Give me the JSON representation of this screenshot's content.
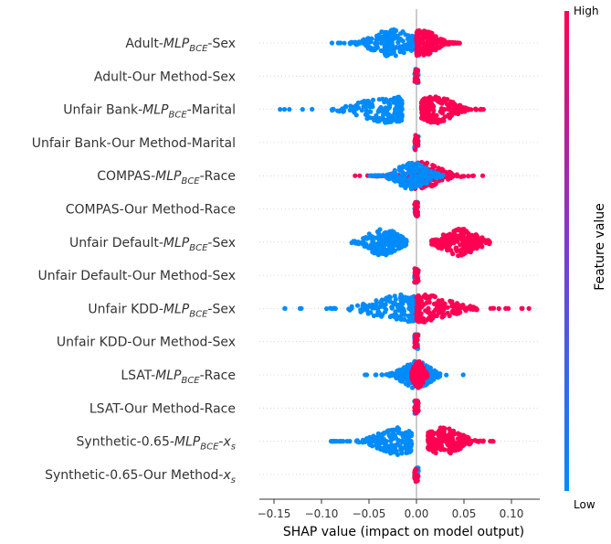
{
  "chart_data": {
    "type": "beeswarm",
    "xlabel": "SHAP value (impact on model output)",
    "xlim": [
      -0.165,
      0.13
    ],
    "xticks": [
      {
        "v": -0.15,
        "label": "−0.15"
      },
      {
        "v": -0.1,
        "label": "−0.10"
      },
      {
        "v": -0.05,
        "label": "−0.05"
      },
      {
        "v": 0.0,
        "label": "0.00"
      },
      {
        "v": 0.05,
        "label": "0.05"
      },
      {
        "v": 0.1,
        "label": "0.10"
      }
    ],
    "colorbar": {
      "title": "Feature value",
      "high_label": "High",
      "low_label": "Low",
      "low_color": "#008bfb",
      "high_color": "#ff0052"
    },
    "rows": [
      {
        "label": [
          "Adult-",
          "MLP",
          "BCE",
          "-Sex"
        ],
        "kind": "mlp",
        "neg": {
          "min": -0.09,
          "center": -0.025,
          "max": 0.0,
          "width": 0.021
        },
        "pos": {
          "min": 0.0,
          "center": 0.006,
          "max": 0.046,
          "width": 0.014
        }
      },
      {
        "label": [
          "Adult-Our Method-Sex"
        ],
        "kind": "ours",
        "neg": {
          "min": -0.003,
          "center": 0.0,
          "max": 0.001,
          "width": 0.001
        },
        "pos": {
          "min": 0.0,
          "center": 0.0,
          "max": 0.003,
          "width": 0.001
        }
      },
      {
        "label": [
          "Unfair Bank-",
          "MLP",
          "BCE",
          "-Marital"
        ],
        "kind": "mlp",
        "neg": {
          "min": -0.15,
          "center": -0.03,
          "max": -0.015,
          "width": 0.028
        },
        "pos": {
          "min": 0.005,
          "center": 0.02,
          "max": 0.075,
          "width": 0.018
        }
      },
      {
        "label": [
          "Unfair Bank-Our Method-Marital"
        ],
        "kind": "ours",
        "neg": {
          "min": -0.002,
          "center": 0.0,
          "max": 0.001,
          "width": 0.001
        },
        "pos": {
          "min": 0.0,
          "center": 0.0,
          "max": 0.002,
          "width": 0.001
        }
      },
      {
        "label": [
          "COMPAS-",
          "MLP",
          "BCE",
          "-Race"
        ],
        "kind": "compas",
        "neg": {
          "min": -0.05,
          "center": -0.005,
          "max": 0.03,
          "width": 0.016
        },
        "pos": {
          "min": -0.065,
          "center": 0.005,
          "max": 0.07,
          "width": 0.02
        }
      },
      {
        "label": [
          "COMPAS-Our Method-Race"
        ],
        "kind": "ours",
        "neg": {
          "min": -0.002,
          "center": 0.0,
          "max": 0.001,
          "width": 0.001
        },
        "pos": {
          "min": 0.0,
          "center": 0.0,
          "max": 0.002,
          "width": 0.001
        }
      },
      {
        "label": [
          "Unfair Default-",
          "MLP",
          "BCE",
          "-Sex"
        ],
        "kind": "mlp",
        "neg": {
          "min": -0.07,
          "center": -0.035,
          "max": -0.01,
          "width": 0.016
        },
        "pos": {
          "min": 0.015,
          "center": 0.045,
          "max": 0.085,
          "width": 0.018
        }
      },
      {
        "label": [
          "Unfair Default-Our Method-Sex"
        ],
        "kind": "ours",
        "neg": {
          "min": -0.002,
          "center": 0.0,
          "max": 0.001,
          "width": 0.001
        },
        "pos": {
          "min": 0.0,
          "center": 0.0,
          "max": 0.002,
          "width": 0.001
        }
      },
      {
        "label": [
          "Unfair KDD-",
          "MLP",
          "BCE",
          "-Sex"
        ],
        "kind": "mlp",
        "neg": {
          "min": -0.14,
          "center": -0.015,
          "max": 0.0,
          "width": 0.03
        },
        "pos": {
          "min": 0.0,
          "center": 0.008,
          "max": 0.12,
          "width": 0.028
        }
      },
      {
        "label": [
          "Unfair KDD-Our Method-Sex"
        ],
        "kind": "ours",
        "neg": {
          "min": -0.004,
          "center": 0.0,
          "max": 0.002,
          "width": 0.001
        },
        "pos": {
          "min": 0.0,
          "center": 0.0,
          "max": 0.004,
          "width": 0.001
        }
      },
      {
        "label": [
          "LSAT-",
          "MLP",
          "BCE",
          "-Race"
        ],
        "kind": "lsat",
        "neg": {
          "min": -0.06,
          "center": 0.0,
          "max": 0.05,
          "width": 0.014
        },
        "pos": {
          "min": -0.005,
          "center": 0.002,
          "max": 0.012,
          "width": 0.005
        }
      },
      {
        "label": [
          "LSAT-Our Method-Race"
        ],
        "kind": "ours",
        "neg": {
          "min": -0.002,
          "center": 0.0,
          "max": 0.001,
          "width": 0.001
        },
        "pos": {
          "min": 0.0,
          "center": 0.0,
          "max": 0.002,
          "width": 0.001
        }
      },
      {
        "label": [
          "Synthetic-0.65-",
          "MLP",
          "BCE",
          "-",
          "x",
          "s"
        ],
        "kind": "mlp",
        "neg": {
          "min": -0.09,
          "center": -0.02,
          "max": -0.005,
          "width": 0.02
        },
        "pos": {
          "min": 0.012,
          "center": 0.028,
          "max": 0.082,
          "width": 0.018
        }
      },
      {
        "label": [
          "Synthetic-0.65-Our Method-",
          "x",
          "s"
        ],
        "kind": "ours",
        "neg": {
          "min": -0.004,
          "center": 0.0,
          "max": 0.002,
          "width": 0.001
        },
        "pos": {
          "min": 0.0,
          "center": 0.0,
          "max": 0.002,
          "width": 0.001
        }
      }
    ]
  }
}
